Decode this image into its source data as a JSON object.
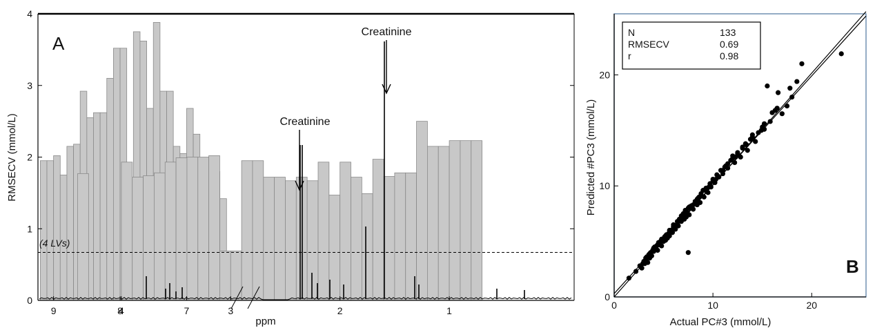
{
  "chart_data": [
    {
      "type": "bar",
      "panel_label": "A",
      "ylabel": "RMSECV (mmol/L)",
      "xlabel": "ppm",
      "ylim": [
        0,
        4
      ],
      "xlim": [
        9.2,
        0.7
      ],
      "yticks": [
        0,
        1,
        2,
        3,
        4
      ],
      "xticks": [
        9,
        8,
        7,
        4,
        3,
        2,
        1
      ],
      "bar_color": "#c8c8c8",
      "reference_line": {
        "value": 0.67,
        "label": "(4 LVs)",
        "style": "dashed"
      },
      "annotations": [
        {
          "text": "Creatinine",
          "ppm": 4.05
        },
        {
          "text": "Creatinine",
          "ppm": 3.05
        }
      ],
      "axis_break_between": [
        7,
        4
      ],
      "series": [
        {
          "ppm": [
            9.15,
            9.05,
            8.95,
            8.85,
            8.75,
            8.65,
            8.55,
            8.45,
            8.35,
            8.25,
            8.15,
            8.05,
            7.95,
            7.85,
            7.75,
            7.65,
            7.55,
            7.45,
            7.35,
            7.25,
            7.15,
            7.05,
            6.95,
            6.85,
            6.75,
            6.65,
            6.55,
            6.45,
            4.35,
            4.25,
            4.15,
            4.05,
            3.95,
            3.85,
            3.75,
            3.65,
            3.55,
            3.45,
            3.35,
            3.25,
            3.15,
            3.05,
            2.95,
            2.85,
            2.75,
            2.65,
            2.55,
            2.45,
            2.35,
            2.25,
            2.15,
            2.05,
            1.95,
            1.85,
            1.75,
            1.65,
            1.55,
            1.45,
            1.35,
            1.25,
            1.15,
            1.05,
            0.95,
            0.85,
            0.75
          ],
          "values": [
            1.95,
            1.95,
            2.02,
            1.75,
            2.15,
            2.18,
            2.92,
            2.55,
            2.62,
            2.62,
            3.1,
            3.52,
            3.52,
            1.57,
            3.75,
            3.62,
            2.68,
            3.88,
            2.92,
            2.92,
            2.15,
            2.05,
            2.68,
            2.32,
            1.78,
            1.65,
            1.8,
            1.42,
            1.77,
            0,
            0,
            0,
            1.93,
            1.72,
            1.74,
            1.78,
            1.93,
            1.99,
            2.0,
            2.0,
            2.02,
            0.69,
            0.69,
            1.95,
            1.95,
            1.72,
            1.72,
            1.67,
            1.72,
            1.67,
            1.93,
            1.47,
            1.93,
            1.72,
            1.49,
            1.97,
            1.73,
            1.78,
            1.78,
            2.5,
            2.15,
            2.15,
            2.23,
            2.23,
            2.23
          ]
        }
      ]
    },
    {
      "type": "scatter",
      "panel_label": "B",
      "xlabel": "Actual PC#3  (mmol/L)",
      "ylabel": "Predicted #PC3  (mmol/L)",
      "xlim": [
        0,
        25.5
      ],
      "ylim": [
        0,
        25.5
      ],
      "xticks": [
        0,
        10,
        20
      ],
      "yticks": [
        0,
        10,
        20
      ],
      "stats": [
        {
          "label": "N",
          "value": "133"
        },
        {
          "label": "RMSECV",
          "value": "0.69"
        },
        {
          "label": "r",
          "value": "0.98"
        }
      ],
      "fit_lines": [
        {
          "x": [
            0,
            25.5
          ],
          "y": [
            0.3,
            25.3
          ]
        },
        {
          "x": [
            0,
            25.5
          ],
          "y": [
            0,
            25.7
          ]
        }
      ],
      "points": {
        "x": [
          1.5,
          2.2,
          2.6,
          2.8,
          3.0,
          3.1,
          3.2,
          3.3,
          3.4,
          3.5,
          3.6,
          3.7,
          3.8,
          3.9,
          4.0,
          4.1,
          4.2,
          4.3,
          4.4,
          4.5,
          4.6,
          4.7,
          4.8,
          4.9,
          5.0,
          5.1,
          5.2,
          5.3,
          5.4,
          5.5,
          5.6,
          5.7,
          5.8,
          5.9,
          6.0,
          6.2,
          6.4,
          6.5,
          6.6,
          6.8,
          7.0,
          7.1,
          7.2,
          7.3,
          7.4,
          7.5,
          7.6,
          7.8,
          8.0,
          8.2,
          8.4,
          8.5,
          8.7,
          8.8,
          9.0,
          9.1,
          9.3,
          9.5,
          9.7,
          9.8,
          10.0,
          10.2,
          10.4,
          10.6,
          10.8,
          11.0,
          11.3,
          11.5,
          11.8,
          12.0,
          12.2,
          12.5,
          12.8,
          13.0,
          13.3,
          13.5,
          13.8,
          14.0,
          14.3,
          14.6,
          14.9,
          15.2,
          15.5,
          15.8,
          16.0,
          16.3,
          16.6,
          17.0,
          17.5,
          18.0,
          18.5,
          19.0,
          23.0,
          7.5,
          3.2,
          3.6,
          4.0,
          4.4,
          4.8,
          5.2,
          5.6,
          6.0,
          6.4,
          6.8,
          7.2,
          7.6,
          8.0,
          8.4,
          8.8,
          9.2,
          9.6,
          10.0,
          10.5,
          11.0,
          11.5,
          12.0,
          12.5,
          13.0,
          14.0,
          15.0,
          16.5,
          17.8,
          2.9,
          3.3,
          3.9,
          4.6,
          5.3,
          6.1,
          6.9,
          7.7,
          8.6,
          9.4,
          10.3,
          11.2,
          12.3,
          13.4,
          15.2
        ],
        "y": [
          1.7,
          2.3,
          2.8,
          2.6,
          3.2,
          3.0,
          3.4,
          3.6,
          3.1,
          3.8,
          3.5,
          4.0,
          3.7,
          4.2,
          4.1,
          4.5,
          4.3,
          4.6,
          4.2,
          4.9,
          4.7,
          5.0,
          4.6,
          5.2,
          5.0,
          5.4,
          5.1,
          5.6,
          5.3,
          5.7,
          5.5,
          5.9,
          6.0,
          5.8,
          6.3,
          6.1,
          6.6,
          6.4,
          7.0,
          6.8,
          7.5,
          7.0,
          7.8,
          7.2,
          7.6,
          8.0,
          7.4,
          8.2,
          7.9,
          8.6,
          8.3,
          8.9,
          8.5,
          9.3,
          9.6,
          9.0,
          9.8,
          9.4,
          10.2,
          9.9,
          10.6,
          10.3,
          11.0,
          10.8,
          11.4,
          11.1,
          11.8,
          11.6,
          12.3,
          12.7,
          12.1,
          13.0,
          12.6,
          13.4,
          13.8,
          13.2,
          14.2,
          14.6,
          14.0,
          14.8,
          15.0,
          15.6,
          19.0,
          15.8,
          16.6,
          16.8,
          18.4,
          16.5,
          17.2,
          18.0,
          19.4,
          21.0,
          21.9,
          4.0,
          3.5,
          3.9,
          4.4,
          4.7,
          5.2,
          5.5,
          6.0,
          6.5,
          6.8,
          7.3,
          7.6,
          8.1,
          8.3,
          8.8,
          9.1,
          9.6,
          9.9,
          10.4,
          10.9,
          11.4,
          12.0,
          12.5,
          12.9,
          13.5,
          14.4,
          15.3,
          17.0,
          18.8,
          3.0,
          3.6,
          4.1,
          4.8,
          5.6,
          6.4,
          7.2,
          8.0,
          9.0,
          9.8,
          10.6,
          11.7,
          12.6,
          13.7,
          15.1
        ]
      }
    }
  ]
}
